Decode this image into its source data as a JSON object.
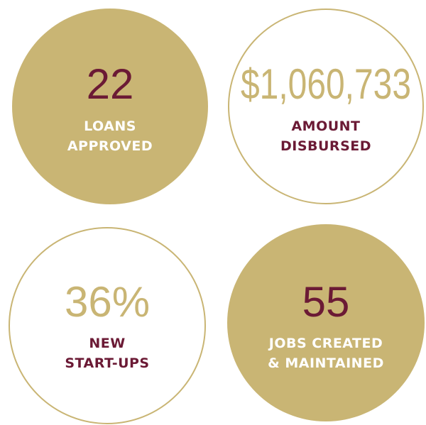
{
  "stats": [
    {
      "value": "22",
      "label": [
        "LOANS",
        "APPROVED"
      ]
    },
    {
      "value": "$1,060,733",
      "label": [
        "AMOUNT",
        "DISBURSED"
      ]
    },
    {
      "value": "36%",
      "label": [
        "NEW",
        "START-UPS"
      ]
    },
    {
      "value": "55",
      "label": [
        "JOBS CREATED",
        "& MAINTAINED"
      ]
    }
  ]
}
